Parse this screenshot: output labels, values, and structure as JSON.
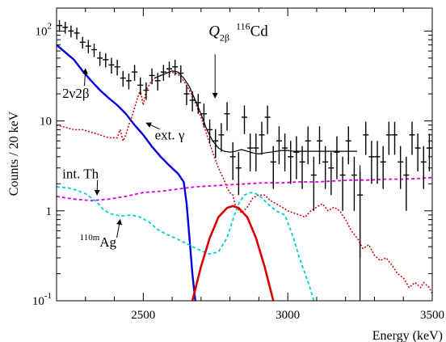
{
  "chart_data": {
    "type": "line",
    "xlabel": "Energy (keV)",
    "ylabel": "Counts / 20 keV",
    "xlim": [
      2200,
      3500
    ],
    "ylim": [
      0.1,
      180
    ],
    "yscale": "log",
    "x_ticks": [
      2500,
      3000,
      3500
    ],
    "x_tick_labels": [
      "2500",
      "3000",
      "3500"
    ],
    "y_ticks": [
      {
        "value": 100,
        "base": "10",
        "exp": "2"
      },
      {
        "value": 10,
        "base": "10",
        "exp": ""
      },
      {
        "value": 1,
        "base": "1",
        "exp": ""
      },
      {
        "value": 0.1,
        "base": "10",
        "exp": "-1"
      }
    ],
    "series": [
      {
        "key": "two_nu",
        "color": "#0000dd",
        "style": "solid",
        "width": 2.4,
        "points": [
          [
            2200,
            70
          ],
          [
            2230,
            58
          ],
          [
            2260,
            48
          ],
          [
            2290,
            36
          ],
          [
            2320,
            28
          ],
          [
            2350,
            22
          ],
          [
            2380,
            18
          ],
          [
            2410,
            15
          ],
          [
            2440,
            12
          ],
          [
            2470,
            9
          ],
          [
            2500,
            7
          ],
          [
            2530,
            5.2
          ],
          [
            2560,
            4
          ],
          [
            2590,
            3.2
          ],
          [
            2620,
            2.6
          ],
          [
            2640,
            2.1
          ],
          [
            2650,
            1.2
          ],
          [
            2660,
            0.5
          ],
          [
            2670,
            0.2
          ],
          [
            2680,
            0.1
          ]
        ]
      },
      {
        "key": "ext_gamma",
        "color": "#cc0000",
        "style": "dotted",
        "width": 1.5,
        "points": [
          [
            2200,
            9
          ],
          [
            2230,
            8.5
          ],
          [
            2260,
            8
          ],
          [
            2290,
            8
          ],
          [
            2320,
            7.5
          ],
          [
            2350,
            7
          ],
          [
            2380,
            6.5
          ],
          [
            2410,
            6.5
          ],
          [
            2420,
            8
          ],
          [
            2430,
            6
          ],
          [
            2440,
            7
          ],
          [
            2450,
            9
          ],
          [
            2460,
            11
          ],
          [
            2470,
            14
          ],
          [
            2480,
            18
          ],
          [
            2490,
            22
          ],
          [
            2500,
            15
          ],
          [
            2510,
            22
          ],
          [
            2520,
            25
          ],
          [
            2530,
            28
          ],
          [
            2540,
            30
          ],
          [
            2560,
            32
          ],
          [
            2580,
            34
          ],
          [
            2600,
            35
          ],
          [
            2620,
            33
          ],
          [
            2640,
            28
          ],
          [
            2660,
            22
          ],
          [
            2680,
            16
          ],
          [
            2700,
            11
          ],
          [
            2720,
            7
          ],
          [
            2740,
            4.5
          ],
          [
            2760,
            3
          ],
          [
            2780,
            2.2
          ],
          [
            2790,
            1.8
          ],
          [
            2800,
            1.6
          ],
          [
            2810,
            1.5
          ],
          [
            2820,
            1.1
          ],
          [
            2840,
            0.95
          ],
          [
            2860,
            1.1
          ],
          [
            2880,
            1.4
          ],
          [
            2900,
            1.5
          ],
          [
            2920,
            1.5
          ],
          [
            2940,
            1.3
          ],
          [
            2960,
            1.2
          ],
          [
            2980,
            1.1
          ],
          [
            3000,
            1.0
          ],
          [
            3020,
            0.95
          ],
          [
            3040,
            0.9
          ],
          [
            3060,
            0.85
          ],
          [
            3080,
            1.0
          ],
          [
            3100,
            1.1
          ],
          [
            3120,
            1.2
          ],
          [
            3140,
            1.0
          ],
          [
            3160,
            1.1
          ],
          [
            3180,
            1.0
          ],
          [
            3200,
            0.8
          ],
          [
            3220,
            0.6
          ],
          [
            3240,
            0.5
          ],
          [
            3260,
            0.38
          ],
          [
            3280,
            0.42
          ],
          [
            3300,
            0.32
          ],
          [
            3320,
            0.28
          ],
          [
            3340,
            0.3
          ],
          [
            3360,
            0.25
          ],
          [
            3380,
            0.2
          ],
          [
            3400,
            0.18
          ],
          [
            3420,
            0.14
          ],
          [
            3440,
            0.16
          ],
          [
            3460,
            0.14
          ],
          [
            3470,
            0.16
          ],
          [
            3490,
            0.14
          ],
          [
            3500,
            0.12
          ]
        ]
      },
      {
        "key": "int_th",
        "color": "#dd00dd",
        "style": "dashed",
        "width": 1.8,
        "points": [
          [
            2200,
            1.45
          ],
          [
            2260,
            1.35
          ],
          [
            2320,
            1.3
          ],
          [
            2380,
            1.35
          ],
          [
            2440,
            1.45
          ],
          [
            2500,
            1.6
          ],
          [
            2560,
            1.65
          ],
          [
            2620,
            1.75
          ],
          [
            2680,
            1.85
          ],
          [
            2740,
            1.9
          ],
          [
            2800,
            1.95
          ],
          [
            2860,
            2.0
          ],
          [
            2920,
            2.05
          ],
          [
            2980,
            2.05
          ],
          [
            3040,
            2.1
          ],
          [
            3100,
            2.1
          ],
          [
            3160,
            2.15
          ],
          [
            3220,
            2.2
          ],
          [
            3280,
            2.2
          ],
          [
            3340,
            2.25
          ],
          [
            3400,
            2.25
          ],
          [
            3460,
            2.3
          ],
          [
            3500,
            2.35
          ]
        ]
      },
      {
        "key": "ag110m",
        "color": "#00d0d0",
        "style": "dashed",
        "width": 1.8,
        "points": [
          [
            2200,
            1.85
          ],
          [
            2240,
            1.8
          ],
          [
            2270,
            1.7
          ],
          [
            2300,
            1.55
          ],
          [
            2320,
            1.4
          ],
          [
            2340,
            1.25
          ],
          [
            2360,
            1.05
          ],
          [
            2380,
            0.95
          ],
          [
            2400,
            0.9
          ],
          [
            2430,
            0.88
          ],
          [
            2460,
            0.9
          ],
          [
            2490,
            0.85
          ],
          [
            2520,
            0.75
          ],
          [
            2550,
            0.62
          ],
          [
            2580,
            0.55
          ],
          [
            2610,
            0.5
          ],
          [
            2640,
            0.45
          ],
          [
            2670,
            0.4
          ],
          [
            2700,
            0.36
          ],
          [
            2730,
            0.33
          ],
          [
            2760,
            0.35
          ],
          [
            2790,
            0.5
          ],
          [
            2810,
            0.8
          ],
          [
            2830,
            1.2
          ],
          [
            2850,
            1.5
          ],
          [
            2870,
            1.6
          ],
          [
            2890,
            1.55
          ],
          [
            2910,
            1.4
          ],
          [
            2930,
            1.2
          ],
          [
            2960,
            1.0
          ],
          [
            2990,
            0.9
          ],
          [
            3020,
            0.5
          ],
          [
            3040,
            0.3
          ],
          [
            3060,
            0.2
          ],
          [
            3080,
            0.13
          ],
          [
            3090,
            0.1
          ]
        ]
      },
      {
        "key": "signal_0nu",
        "color": "#dd0000",
        "style": "solid",
        "width": 2.6,
        "points": [
          [
            2670,
            0.1
          ],
          [
            2700,
            0.24
          ],
          [
            2730,
            0.5
          ],
          [
            2760,
            0.85
          ],
          [
            2790,
            1.08
          ],
          [
            2810,
            1.13
          ],
          [
            2830,
            1.08
          ],
          [
            2860,
            0.85
          ],
          [
            2890,
            0.5
          ],
          [
            2920,
            0.24
          ],
          [
            2950,
            0.1
          ]
        ]
      },
      {
        "key": "total_fit",
        "color": "#000000",
        "style": "solid",
        "width": 1.2,
        "points": [
          [
            2540,
            30
          ],
          [
            2560,
            32
          ],
          [
            2580,
            34
          ],
          [
            2600,
            36
          ],
          [
            2620,
            35
          ],
          [
            2640,
            30
          ],
          [
            2660,
            24
          ],
          [
            2680,
            17
          ],
          [
            2700,
            12
          ],
          [
            2720,
            8
          ],
          [
            2740,
            6
          ],
          [
            2760,
            5
          ],
          [
            2780,
            4.6
          ],
          [
            2800,
            4.5
          ],
          [
            2820,
            4.6
          ],
          [
            2840,
            4.8
          ],
          [
            2860,
            4.6
          ],
          [
            2880,
            4.4
          ],
          [
            2900,
            4.3
          ],
          [
            2920,
            4.4
          ],
          [
            2940,
            4.5
          ],
          [
            2960,
            4.6
          ],
          [
            2980,
            4.7
          ],
          [
            3000,
            4.7
          ],
          [
            3020,
            4.6
          ],
          [
            3040,
            4.6
          ],
          [
            3060,
            4.6
          ],
          [
            3080,
            4.6
          ],
          [
            3100,
            4.6
          ],
          [
            3120,
            4.6
          ],
          [
            3140,
            4.6
          ],
          [
            3160,
            4.6
          ],
          [
            3180,
            4.6
          ],
          [
            3200,
            4.6
          ],
          [
            3220,
            4.6
          ],
          [
            3240,
            4.6
          ]
        ]
      }
    ],
    "data_points": [
      [
        2210,
        115,
        0.15
      ],
      [
        2230,
        110,
        0.15
      ],
      [
        2250,
        100,
        0.15
      ],
      [
        2270,
        95,
        0.15
      ],
      [
        2290,
        75,
        0.15
      ],
      [
        2310,
        68,
        0.17
      ],
      [
        2330,
        62,
        0.17
      ],
      [
        2350,
        50,
        0.18
      ],
      [
        2370,
        48,
        0.18
      ],
      [
        2390,
        42,
        0.2
      ],
      [
        2410,
        40,
        0.2
      ],
      [
        2430,
        30,
        0.2
      ],
      [
        2450,
        28,
        0.2
      ],
      [
        2470,
        35,
        0.2
      ],
      [
        2490,
        25,
        0.22
      ],
      [
        2510,
        22,
        0.22
      ],
      [
        2530,
        32,
        0.2
      ],
      [
        2550,
        28,
        0.22
      ],
      [
        2570,
        35,
        0.2
      ],
      [
        2590,
        38,
        0.2
      ],
      [
        2610,
        40,
        0.2
      ],
      [
        2630,
        34,
        0.22
      ],
      [
        2650,
        20,
        0.25
      ],
      [
        2670,
        17,
        0.25
      ],
      [
        2690,
        16,
        0.25
      ],
      [
        2710,
        12,
        0.3
      ],
      [
        2730,
        8,
        0.3
      ],
      [
        2750,
        6,
        0.35
      ],
      [
        2770,
        7,
        0.35
      ],
      [
        2790,
        12,
        0.35
      ],
      [
        2810,
        4,
        0.45
      ],
      [
        2830,
        3,
        0.5
      ],
      [
        2850,
        11,
        0.35
      ],
      [
        2870,
        5,
        0.45
      ],
      [
        2890,
        5,
        0.45
      ],
      [
        2910,
        7,
        0.4
      ],
      [
        2930,
        11,
        0.35
      ],
      [
        2950,
        3.5,
        0.5
      ],
      [
        2970,
        6,
        0.45
      ],
      [
        2990,
        5,
        0.45
      ],
      [
        3010,
        4,
        0.5
      ],
      [
        3030,
        4.5,
        0.5
      ],
      [
        3050,
        3.5,
        0.5
      ],
      [
        3070,
        6,
        0.45
      ],
      [
        3090,
        2.5,
        0.6
      ],
      [
        3110,
        6,
        0.45
      ],
      [
        3130,
        3.5,
        0.5
      ],
      [
        3150,
        3,
        0.5
      ],
      [
        3170,
        4.5,
        0.5
      ],
      [
        3190,
        2.5,
        0.6
      ],
      [
        3210,
        6,
        0.45
      ],
      [
        3230,
        2.5,
        0.6
      ],
      [
        3250,
        1.5,
        0.8
      ],
      [
        3270,
        7,
        0.4
      ],
      [
        3290,
        4,
        0.5
      ],
      [
        3310,
        4,
        0.5
      ],
      [
        3330,
        3.5,
        0.5
      ],
      [
        3350,
        7,
        0.4
      ],
      [
        3370,
        7,
        0.4
      ],
      [
        3390,
        3.5,
        0.5
      ],
      [
        3410,
        2.5,
        0.6
      ],
      [
        3430,
        7,
        0.4
      ],
      [
        3450,
        5,
        0.45
      ],
      [
        3470,
        3.5,
        0.5
      ],
      [
        3490,
        5,
        0.45
      ]
    ],
    "zero_bin_line": {
      "x": 3250,
      "color": "#000000"
    },
    "annotations": [
      {
        "key": "two_nu",
        "text": "2ν2β",
        "sup": "",
        "at": [
          2220,
          18
        ],
        "arrow_to": [
          2300,
          38
        ]
      },
      {
        "key": "ext_gamma",
        "text": "ext. γ",
        "sup": "",
        "at": [
          2540,
          6.2
        ],
        "arrow_to": [
          2510,
          9.5
        ]
      },
      {
        "key": "int_th",
        "text": "int. Th",
        "sup": "",
        "at": [
          2220,
          2.3
        ],
        "arrow_to": [
          2340,
          1.5
        ]
      },
      {
        "key": "ag110m",
        "text": "Ag",
        "sup": "110m",
        "at": [
          2280,
          0.4
        ],
        "arrow_to": [
          2420,
          0.8
        ]
      }
    ],
    "q_label": {
      "text_Q": "Q",
      "text_sub": "2β",
      "text_sup": "116",
      "text_Cd": "Cd",
      "x": 2810,
      "arrow_from": 55,
      "arrow_to": 18
    }
  }
}
